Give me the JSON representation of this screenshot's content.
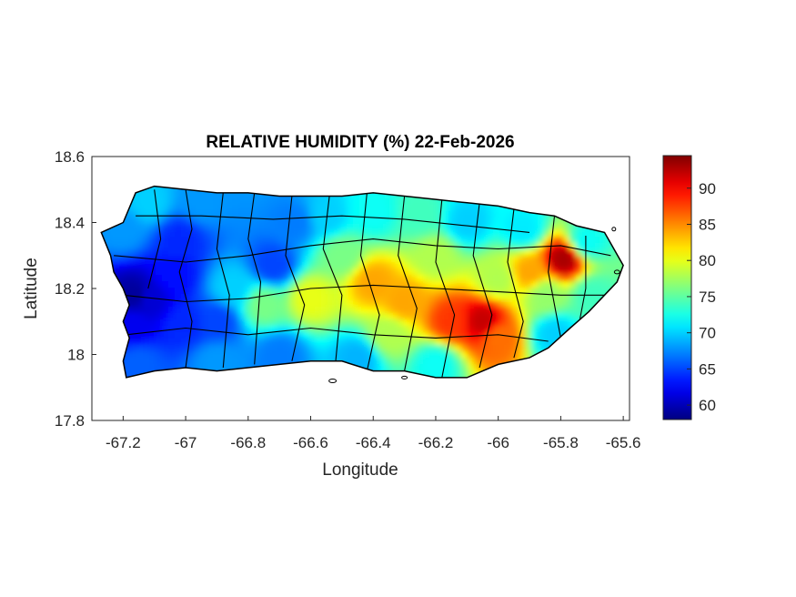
{
  "title": "RELATIVE HUMIDITY (%) 22-Feb-2026",
  "xlabel": "Longitude",
  "ylabel": "Latitude",
  "x_ticks": [
    "-67.2",
    "-67",
    "-66.8",
    "-66.6",
    "-66.4",
    "-66.2",
    "-66",
    "-65.8",
    "-65.6"
  ],
  "y_ticks": [
    "18.6",
    "18.4",
    "18.2",
    "18",
    "17.8"
  ],
  "colorbar_ticks": [
    "90",
    "85",
    "80",
    "75",
    "70",
    "65",
    "60"
  ],
  "colormap": "jet",
  "chart_data": {
    "type": "heatmap",
    "title": "RELATIVE HUMIDITY (%) 22-Feb-2026",
    "xlabel": "Longitude",
    "ylabel": "Latitude",
    "xlim": [
      -67.3,
      -65.58
    ],
    "ylim": [
      17.8,
      18.6
    ],
    "x_ticks": [
      -67.2,
      -67,
      -66.8,
      -66.6,
      -66.4,
      -66.2,
      -66,
      -65.8,
      -65.6
    ],
    "y_ticks": [
      18.6,
      18.4,
      18.2,
      18,
      17.8
    ],
    "colorbar": {
      "min": 58,
      "max": 94.5,
      "ticks": [
        90,
        85,
        80,
        75,
        70,
        65,
        60
      ],
      "colormap": "jet"
    },
    "coastline": [
      [
        -67.27,
        18.37
      ],
      [
        -67.2,
        18.4
      ],
      [
        -67.16,
        18.49
      ],
      [
        -67.1,
        18.51
      ],
      [
        -67.0,
        18.5
      ],
      [
        -66.9,
        18.49
      ],
      [
        -66.8,
        18.49
      ],
      [
        -66.7,
        18.48
      ],
      [
        -66.6,
        18.48
      ],
      [
        -66.5,
        18.48
      ],
      [
        -66.4,
        18.49
      ],
      [
        -66.3,
        18.48
      ],
      [
        -66.2,
        18.47
      ],
      [
        -66.1,
        18.46
      ],
      [
        -66.0,
        18.45
      ],
      [
        -65.9,
        18.43
      ],
      [
        -65.82,
        18.42
      ],
      [
        -65.75,
        18.39
      ],
      [
        -65.66,
        18.37
      ],
      [
        -65.63,
        18.32
      ],
      [
        -65.6,
        18.27
      ],
      [
        -65.62,
        18.22
      ],
      [
        -65.66,
        18.18
      ],
      [
        -65.71,
        18.13
      ],
      [
        -65.77,
        18.08
      ],
      [
        -65.84,
        18.02
      ],
      [
        -65.9,
        17.99
      ],
      [
        -66.0,
        17.97
      ],
      [
        -66.1,
        17.93
      ],
      [
        -66.2,
        17.93
      ],
      [
        -66.3,
        17.95
      ],
      [
        -66.4,
        17.95
      ],
      [
        -66.5,
        17.98
      ],
      [
        -66.6,
        17.98
      ],
      [
        -66.7,
        17.97
      ],
      [
        -66.8,
        17.96
      ],
      [
        -66.9,
        17.95
      ],
      [
        -67.0,
        17.96
      ],
      [
        -67.1,
        17.95
      ],
      [
        -67.19,
        17.93
      ],
      [
        -67.2,
        17.98
      ],
      [
        -67.18,
        18.05
      ],
      [
        -67.2,
        18.1
      ],
      [
        -67.18,
        18.15
      ],
      [
        -67.2,
        18.2
      ],
      [
        -67.23,
        18.25
      ],
      [
        -67.24,
        18.3
      ],
      [
        -67.27,
        18.37
      ]
    ],
    "humidity_anchors": [
      {
        "lon": -67.16,
        "lat": 18.18,
        "rh": 59
      },
      {
        "lon": -67.12,
        "lat": 18.17,
        "rh": 61
      },
      {
        "lon": -67.04,
        "lat": 18.24,
        "rh": 63
      },
      {
        "lon": -67.02,
        "lat": 18.35,
        "rh": 64
      },
      {
        "lon": -67.17,
        "lat": 18.09,
        "rh": 62
      },
      {
        "lon": -67.0,
        "lat": 18.09,
        "rh": 64
      },
      {
        "lon": -66.72,
        "lat": 18.27,
        "rh": 65
      },
      {
        "lon": -66.9,
        "lat": 18.1,
        "rh": 65
      },
      {
        "lon": -66.65,
        "lat": 18.4,
        "rh": 67
      },
      {
        "lon": -66.55,
        "lat": 18.42,
        "rh": 70
      },
      {
        "lon": -66.4,
        "lat": 18.43,
        "rh": 72
      },
      {
        "lon": -66.25,
        "lat": 18.42,
        "rh": 74
      },
      {
        "lon": -66.1,
        "lat": 18.4,
        "rh": 70
      },
      {
        "lon": -65.92,
        "lat": 18.38,
        "rh": 71
      },
      {
        "lon": -65.72,
        "lat": 18.34,
        "rh": 72
      },
      {
        "lon": -65.7,
        "lat": 18.18,
        "rh": 74
      },
      {
        "lon": -65.82,
        "lat": 18.06,
        "rh": 70
      },
      {
        "lon": -66.2,
        "lat": 17.97,
        "rh": 72
      },
      {
        "lon": -66.45,
        "lat": 17.99,
        "rh": 69
      },
      {
        "lon": -66.7,
        "lat": 18.0,
        "rh": 67
      },
      {
        "lon": -66.6,
        "lat": 18.17,
        "rh": 80
      },
      {
        "lon": -66.4,
        "lat": 18.22,
        "rh": 84
      },
      {
        "lon": -66.3,
        "lat": 18.16,
        "rh": 84
      },
      {
        "lon": -66.15,
        "lat": 18.1,
        "rh": 88
      },
      {
        "lon": -66.05,
        "lat": 18.1,
        "rh": 92
      },
      {
        "lon": -66.0,
        "lat": 18.05,
        "rh": 86
      },
      {
        "lon": -66.0,
        "lat": 18.23,
        "rh": 78
      },
      {
        "lon": -65.9,
        "lat": 18.25,
        "rh": 84
      },
      {
        "lon": -65.79,
        "lat": 18.29,
        "rh": 93
      },
      {
        "lon": -65.85,
        "lat": 18.18,
        "rh": 77
      },
      {
        "lon": -66.75,
        "lat": 18.15,
        "rh": 76
      },
      {
        "lon": -66.85,
        "lat": 18.2,
        "rh": 70
      },
      {
        "lon": -66.2,
        "lat": 18.3,
        "rh": 78
      },
      {
        "lon": -66.5,
        "lat": 18.3,
        "rh": 76
      },
      {
        "lon": -67.2,
        "lat": 18.38,
        "rh": 68
      },
      {
        "lon": -66.95,
        "lat": 18.46,
        "rh": 68
      },
      {
        "lon": -67.12,
        "lat": 18.46,
        "rh": 70
      },
      {
        "lon": -66.35,
        "lat": 18.06,
        "rh": 78
      },
      {
        "lon": -66.9,
        "lat": 17.98,
        "rh": 68
      },
      {
        "lon": -67.15,
        "lat": 17.97,
        "rh": 66
      }
    ]
  }
}
